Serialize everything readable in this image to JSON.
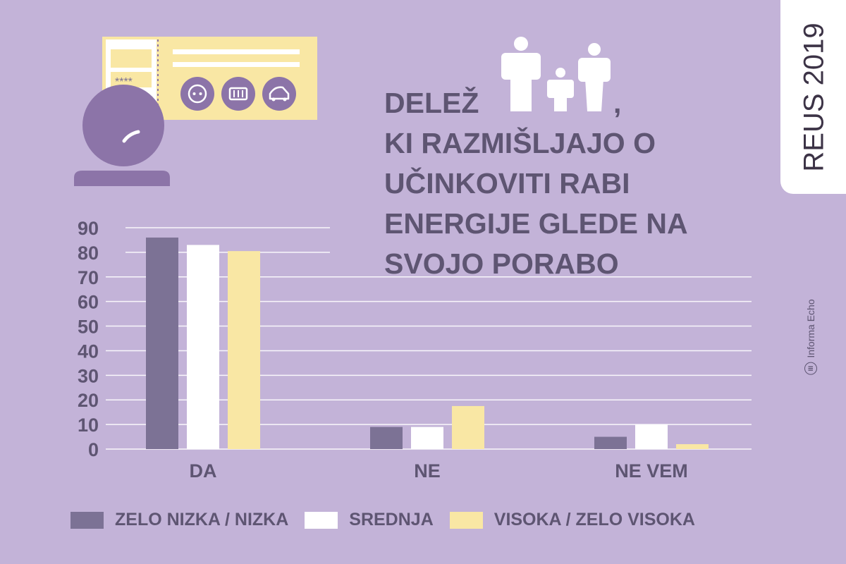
{
  "title": {
    "line1": "DELEŽ",
    "comma": ",",
    "line2": "KI RAZMIŠLJAJO O",
    "line3": "UČINKOVITI RABI",
    "line4": "ENERGIJE GLEDE NA",
    "line5": "SVOJO PORABO"
  },
  "side_tab": {
    "label": "REUS 2019"
  },
  "brand": {
    "icon_text": "III",
    "label": "Informa Echo"
  },
  "illustration": {
    "password_mask": "****"
  },
  "colors": {
    "background": "#c3b3d8",
    "dark_purple": "#7c7295",
    "title_text": "#5e5572",
    "white": "#ffffff",
    "yellow": "#f9e7a4",
    "illus_purple": "#8c74a8"
  },
  "icons": [
    "family-icon",
    "socket-icon",
    "heater-icon",
    "car-icon",
    "person-icon",
    "card-icon",
    "gauge-icon"
  ],
  "chart_data": {
    "type": "bar",
    "categories": [
      "DA",
      "NE",
      "NE VEM"
    ],
    "series": [
      {
        "name": "ZELO NIZKA / NIZKA",
        "values": [
          86,
          9,
          5
        ],
        "color": "#7c7295"
      },
      {
        "name": "SREDNJA",
        "values": [
          83,
          9,
          10
        ],
        "color": "#ffffff"
      },
      {
        "name": "VISOKA / ZELO VISOKA",
        "values": [
          80.5,
          17.5,
          2
        ],
        "color": "#f9e7a4"
      }
    ],
    "yticks": [
      0,
      10,
      20,
      30,
      40,
      50,
      60,
      70,
      80,
      90
    ],
    "ylim": [
      0,
      90
    ],
    "grid": true,
    "legend_position": "bottom"
  }
}
